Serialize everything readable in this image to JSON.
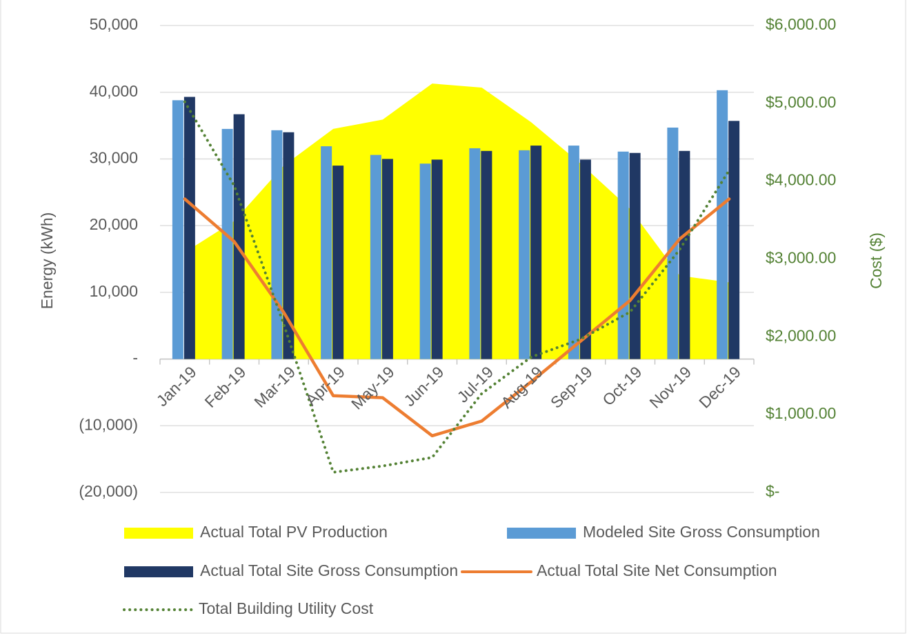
{
  "chart_data": {
    "type": "combo",
    "y_label": "Energy (kWh)",
    "y2_label": "Cost ($)",
    "categories": [
      "Jan-19",
      "Feb-19",
      "Mar-19",
      "Apr-19",
      "May-19",
      "Jun-19",
      "Jul-19",
      "Aug-19",
      "Sep-19",
      "Oct-19",
      "Nov-19",
      "Dec-19"
    ],
    "series": [
      {
        "name": "Actual Total PV Production",
        "type": "area",
        "color": "#ffff00",
        "values": [
          16000,
          20700,
          29000,
          34500,
          35900,
          41300,
          40700,
          35500,
          29300,
          22500,
          12500,
          11500
        ]
      },
      {
        "name": "Modeled Site Gross Consumption",
        "type": "bar",
        "color": "#5b9bd5",
        "values": [
          38800,
          34500,
          34300,
          31900,
          30600,
          29300,
          31600,
          31300,
          32000,
          31100,
          34700,
          40300
        ]
      },
      {
        "name": "Actual Total Site Gross Consumption",
        "type": "bar",
        "color": "#203864",
        "values": [
          39300,
          36700,
          34000,
          29000,
          30000,
          29900,
          31200,
          32000,
          29900,
          30900,
          31200,
          35700
        ]
      },
      {
        "name": "Actual Total Site Net Consumption",
        "type": "line",
        "color": "#ed7d31",
        "values": [
          24000,
          17600,
          7000,
          -5500,
          -5800,
          -11500,
          -9300,
          -3400,
          2700,
          8800,
          18000,
          24000
        ]
      },
      {
        "name": "Total Building Utility Cost",
        "type": "line",
        "style": "dotted",
        "color": "#548235",
        "axis": "y2",
        "values": [
          5020,
          3940,
          2160,
          260,
          340,
          450,
          1270,
          1740,
          1970,
          2320,
          3120,
          4140
        ]
      }
    ],
    "ylim": [
      -20000,
      50000
    ],
    "yticks": [
      {
        "value": -20000,
        "label": "(20,000)"
      },
      {
        "value": -10000,
        "label": "(10,000)"
      },
      {
        "value": 0,
        "label": "-"
      },
      {
        "value": 10000,
        "label": "10,000"
      },
      {
        "value": 20000,
        "label": "20,000"
      },
      {
        "value": 30000,
        "label": "30,000"
      },
      {
        "value": 40000,
        "label": "40,000"
      },
      {
        "value": 50000,
        "label": "50,000"
      }
    ],
    "y2lim": [
      0,
      6000
    ],
    "y2ticks": [
      {
        "value": 0,
        "label": "$-"
      },
      {
        "value": 1000,
        "label": "$1,000.00"
      },
      {
        "value": 2000,
        "label": "$2,000.00"
      },
      {
        "value": 3000,
        "label": "$3,000.00"
      },
      {
        "value": 4000,
        "label": "$4,000.00"
      },
      {
        "value": 5000,
        "label": "$5,000.00"
      },
      {
        "value": 6000,
        "label": "$6,000.00"
      }
    ],
    "y2_color": "#548235",
    "grid": true,
    "legend": "bottom"
  }
}
